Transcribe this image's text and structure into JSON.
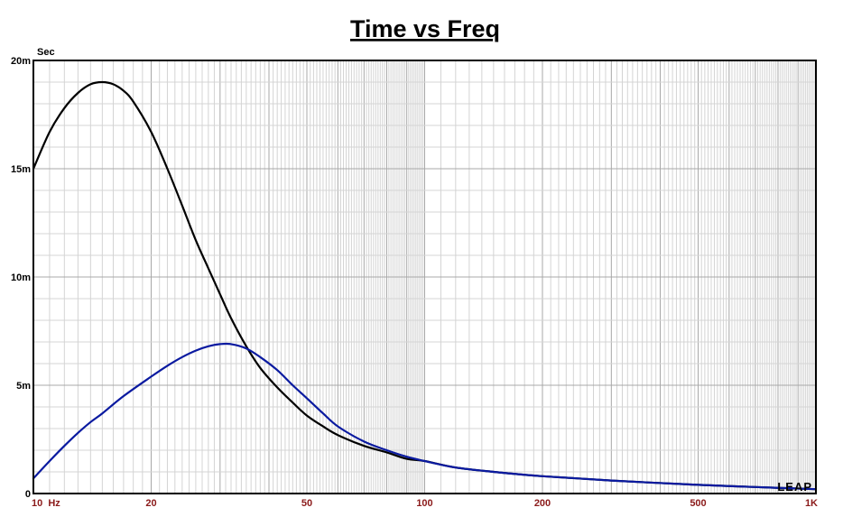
{
  "chart_data": {
    "type": "line",
    "title": "Time vs Freq",
    "y_unit": "Sec",
    "x_scale": "log",
    "xlim": [
      10,
      1000
    ],
    "ylim": [
      0,
      0.02
    ],
    "x_ticks": [
      {
        "value": 10,
        "label": "10  Hz"
      },
      {
        "value": 20,
        "label": "20"
      },
      {
        "value": 50,
        "label": "50"
      },
      {
        "value": 100,
        "label": "100"
      },
      {
        "value": 200,
        "label": "200"
      },
      {
        "value": 500,
        "label": "500"
      },
      {
        "value": 1000,
        "label": "1K"
      }
    ],
    "y_ticks": [
      {
        "value": 0,
        "label": "0"
      },
      {
        "value": 0.005,
        "label": "5m"
      },
      {
        "value": 0.01,
        "label": "10m"
      },
      {
        "value": 0.015,
        "label": "15m"
      },
      {
        "value": 0.02,
        "label": "20m"
      }
    ],
    "grid": true,
    "series": [
      {
        "color": "#000000",
        "x": [
          10,
          11,
          12,
          13,
          14,
          15,
          16,
          17,
          18,
          20,
          22,
          24,
          26,
          28,
          30,
          32,
          35,
          38,
          42,
          46,
          50,
          55,
          60,
          70,
          80,
          90,
          100,
          120,
          150,
          200,
          300,
          500,
          700,
          1000
        ],
        "y": [
          0.015,
          0.0167,
          0.0178,
          0.0185,
          0.0189,
          0.019,
          0.0189,
          0.0186,
          0.0181,
          0.0167,
          0.015,
          0.0133,
          0.0117,
          0.0104,
          0.0092,
          0.0081,
          0.0068,
          0.0058,
          0.0049,
          0.0042,
          0.0036,
          0.0031,
          0.0027,
          0.0022,
          0.0019,
          0.0016,
          0.0015,
          0.0012,
          0.001,
          0.0008,
          0.0006,
          0.0004,
          0.0003,
          0.0002
        ]
      },
      {
        "color": "#0a1aa0",
        "x": [
          10,
          11,
          12,
          13,
          14,
          15,
          17,
          20,
          22,
          24,
          26,
          28,
          30,
          32,
          35,
          38,
          42,
          46,
          50,
          55,
          60,
          70,
          80,
          90,
          100,
          120,
          150,
          200,
          300,
          500,
          700,
          1000
        ],
        "y": [
          0.0007,
          0.0015,
          0.0022,
          0.0028,
          0.0033,
          0.0037,
          0.0045,
          0.0054,
          0.0059,
          0.0063,
          0.0066,
          0.0068,
          0.0069,
          0.0069,
          0.0067,
          0.0063,
          0.0057,
          0.005,
          0.0044,
          0.0037,
          0.0031,
          0.0024,
          0.002,
          0.0017,
          0.0015,
          0.0012,
          0.001,
          0.0008,
          0.0006,
          0.0004,
          0.0003,
          0.0002
        ]
      }
    ],
    "watermark": "LEAP"
  }
}
